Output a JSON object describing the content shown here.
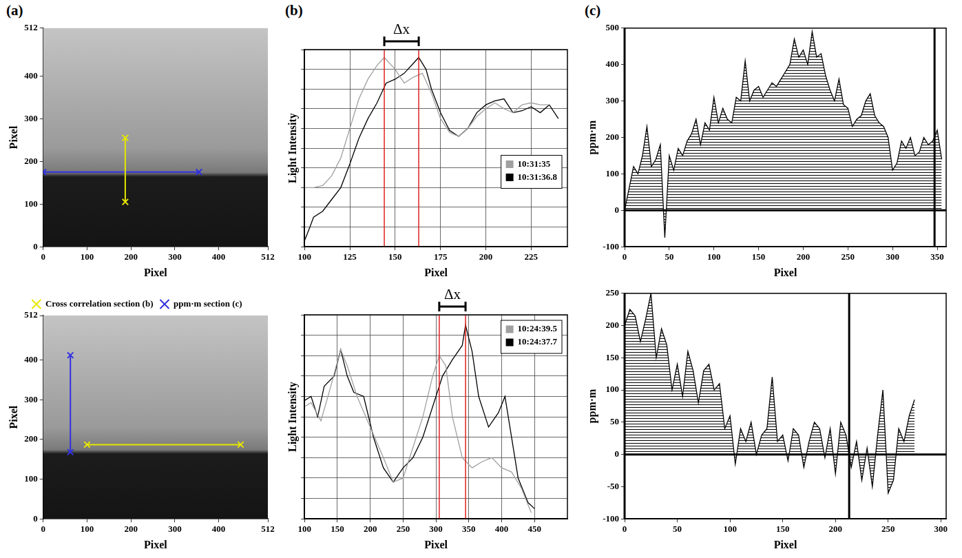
{
  "panel_labels": [
    "(a)",
    "(b)",
    "(c)"
  ],
  "chart_data": [
    {
      "type": "scatter",
      "xlabel": "Pixel",
      "ylabel": "Pixel",
      "xlim": [
        0,
        512
      ],
      "xticks": [
        0,
        100,
        200,
        300,
        400,
        512
      ],
      "ylim": [
        0,
        512
      ],
      "yticks": [
        0,
        100,
        200,
        300,
        400,
        512
      ],
      "grid": false,
      "series": [
        {
          "color": "#e8e800",
          "marker": "x",
          "x": [
            187,
            187
          ],
          "values": [
            105,
            255
          ]
        },
        {
          "color": "#3030e0",
          "marker": "x",
          "x": [
            0,
            355
          ],
          "values": [
            175,
            175
          ]
        }
      ]
    },
    {
      "type": "line",
      "xlabel": "Pixel",
      "ylabel": "Light Intensity",
      "xlim": [
        100,
        245
      ],
      "xticks": [
        100,
        125,
        150,
        175,
        200,
        225
      ],
      "ylim": [
        0,
        10
      ],
      "yticks": [
        0,
        1,
        2,
        3,
        4,
        5,
        6,
        7,
        8,
        9,
        10
      ],
      "grid": true,
      "tick_labels": "x",
      "legend": "center right",
      "annotations": [
        {
          "type": "bracket",
          "text": "Δx",
          "x": [
            144,
            163
          ],
          "color": "#e02020"
        }
      ],
      "series": [
        {
          "name": "10:31:35",
          "color": "#a0a0a0",
          "x": [
            100,
            105,
            110,
            115,
            120,
            125,
            130,
            135,
            140,
            144,
            150,
            155,
            160,
            165,
            170,
            175,
            180,
            185,
            190,
            195,
            200,
            205,
            210,
            215,
            220,
            225,
            230,
            235
          ],
          "values": [
            3.0,
            3.0,
            3.1,
            3.6,
            4.5,
            6.0,
            7.5,
            8.5,
            9.2,
            9.6,
            9.0,
            8.3,
            8.6,
            8.8,
            7.8,
            6.5,
            5.8,
            5.6,
            6.0,
            6.6,
            7.0,
            7.3,
            7.0,
            6.8,
            7.2,
            7.3,
            7.2,
            7.2
          ]
        },
        {
          "name": "10:31:36.8",
          "color": "#000000",
          "x": [
            100,
            103,
            105,
            110,
            115,
            120,
            125,
            130,
            135,
            140,
            145,
            150,
            155,
            160,
            163,
            167,
            170,
            175,
            180,
            185,
            190,
            195,
            200,
            205,
            210,
            215,
            220,
            225,
            230,
            235,
            240
          ],
          "values": [
            0.3,
            1.0,
            1.5,
            1.8,
            2.4,
            3.0,
            4.2,
            5.5,
            6.5,
            7.3,
            8.3,
            8.5,
            8.8,
            9.3,
            9.6,
            9.0,
            8.0,
            6.8,
            5.9,
            5.6,
            6.0,
            6.8,
            7.2,
            7.4,
            7.5,
            6.8,
            6.9,
            7.1,
            6.8,
            7.2,
            6.5
          ]
        }
      ]
    },
    {
      "type": "area",
      "xlabel": "Pixel",
      "ylabel": "ppm·m",
      "xlim": [
        0,
        360
      ],
      "xticks": [
        0,
        50,
        100,
        150,
        200,
        250,
        300,
        350
      ],
      "ylim": [
        -100,
        500
      ],
      "yticks": [
        -100,
        0,
        100,
        200,
        300,
        400,
        500
      ],
      "grid": false,
      "annotations": [
        {
          "type": "vline",
          "x": 0
        },
        {
          "type": "vline",
          "x": 347
        },
        {
          "type": "hline",
          "y": 0
        }
      ],
      "series": [
        {
          "color": "#000000",
          "x": [
            0,
            5,
            10,
            15,
            20,
            25,
            30,
            35,
            40,
            45,
            50,
            55,
            60,
            65,
            70,
            75,
            80,
            85,
            90,
            95,
            100,
            105,
            110,
            115,
            120,
            125,
            130,
            135,
            140,
            145,
            150,
            155,
            160,
            165,
            170,
            175,
            180,
            185,
            190,
            195,
            200,
            205,
            210,
            215,
            220,
            225,
            230,
            235,
            240,
            245,
            250,
            255,
            260,
            265,
            270,
            275,
            280,
            285,
            290,
            295,
            300,
            305,
            310,
            315,
            320,
            325,
            330,
            335,
            340,
            345,
            350,
            355
          ],
          "values": [
            0,
            60,
            120,
            100,
            150,
            230,
            120,
            140,
            180,
            -75,
            150,
            110,
            170,
            150,
            190,
            210,
            250,
            180,
            240,
            220,
            310,
            240,
            280,
            250,
            240,
            310,
            300,
            410,
            300,
            330,
            340,
            310,
            330,
            350,
            340,
            360,
            380,
            400,
            470,
            420,
            440,
            400,
            490,
            420,
            430,
            370,
            330,
            300,
            360,
            290,
            280,
            230,
            250,
            260,
            300,
            320,
            260,
            240,
            230,
            200,
            110,
            130,
            190,
            170,
            200,
            150,
            160,
            200,
            180,
            190,
            220,
            140
          ]
        }
      ]
    },
    {
      "type": "scatter",
      "xlabel": "Pixel",
      "ylabel": "Pixel",
      "xlim": [
        0,
        512
      ],
      "xticks": [
        0,
        100,
        200,
        300,
        400,
        512
      ],
      "ylim": [
        0,
        512
      ],
      "yticks": [
        0,
        100,
        200,
        300,
        400,
        512
      ],
      "grid": false,
      "legend": "top",
      "series": [
        {
          "name": "Cross correlation section (b)",
          "color": "#e8e800",
          "marker": "x",
          "x": [
            100,
            450
          ],
          "values": [
            187,
            187
          ]
        },
        {
          "name": "ppm·m section (c)",
          "color": "#3030e0",
          "marker": "x",
          "x": [
            62,
            62
          ],
          "values": [
            168,
            412
          ]
        }
      ]
    },
    {
      "type": "line",
      "xlabel": "Pixel",
      "ylabel": "Light Intensity",
      "xlim": [
        100,
        500
      ],
      "xticks": [
        100,
        150,
        200,
        250,
        300,
        350,
        400,
        450
      ],
      "ylim": [
        0,
        10
      ],
      "yticks": [
        0,
        1,
        2,
        3,
        4,
        5,
        6,
        7,
        8,
        9,
        10
      ],
      "grid": true,
      "tick_labels": "x",
      "legend": "upper right",
      "annotations": [
        {
          "type": "bracket",
          "text": "Δx",
          "x": [
            305,
            345
          ],
          "color": "#e02020"
        }
      ],
      "series": [
        {
          "name": "10:24:39.5",
          "color": "#a0a0a0",
          "x": [
            100,
            110,
            125,
            140,
            155,
            165,
            180,
            200,
            220,
            235,
            250,
            265,
            280,
            295,
            305,
            315,
            325,
            340,
            355,
            370,
            385,
            400,
            415,
            430,
            445
          ],
          "values": [
            5.5,
            5.7,
            4.8,
            6.5,
            8.3,
            7.5,
            6.0,
            4.5,
            3.0,
            1.8,
            2.0,
            3.5,
            5.0,
            7.0,
            8.0,
            7.5,
            5.0,
            3.0,
            2.5,
            2.8,
            3.0,
            2.5,
            2.3,
            1.5,
            0.3
          ]
        },
        {
          "name": "10:24:37.7",
          "color": "#000000",
          "x": [
            100,
            110,
            120,
            130,
            145,
            155,
            165,
            175,
            190,
            205,
            220,
            235,
            250,
            265,
            280,
            295,
            310,
            325,
            340,
            345,
            355,
            365,
            380,
            395,
            405,
            415,
            425,
            440,
            450
          ],
          "values": [
            5.8,
            6.0,
            5.0,
            6.5,
            7.0,
            8.3,
            7.0,
            6.2,
            6.0,
            4.0,
            2.5,
            1.8,
            2.5,
            3.0,
            4.0,
            5.5,
            7.0,
            7.8,
            8.5,
            9.5,
            8.2,
            6.0,
            4.5,
            5.2,
            6.0,
            4.0,
            2.0,
            0.8,
            0.5
          ]
        }
      ]
    },
    {
      "type": "area",
      "xlabel": "Pixel",
      "ylabel": "ppm·m",
      "xlim": [
        0,
        305
      ],
      "xticks": [
        0,
        50,
        100,
        150,
        200,
        250,
        300
      ],
      "ylim": [
        -100,
        250
      ],
      "yticks": [
        -100,
        -50,
        0,
        50,
        100,
        150,
        200,
        250
      ],
      "grid": false,
      "annotations": [
        {
          "type": "vline",
          "x": 0
        },
        {
          "type": "vline",
          "x": 213
        },
        {
          "type": "hline",
          "y": 0
        }
      ],
      "series": [
        {
          "color": "#000000",
          "x": [
            0,
            5,
            10,
            15,
            20,
            25,
            30,
            35,
            40,
            45,
            50,
            55,
            60,
            65,
            70,
            75,
            80,
            85,
            90,
            95,
            100,
            105,
            110,
            115,
            120,
            125,
            130,
            135,
            140,
            145,
            150,
            155,
            160,
            165,
            170,
            175,
            180,
            185,
            190,
            195,
            200,
            205,
            210,
            215,
            220,
            225,
            230,
            235,
            240,
            245,
            250,
            255,
            260,
            265,
            270,
            275
          ],
          "values": [
            200,
            225,
            215,
            175,
            210,
            250,
            150,
            195,
            170,
            100,
            140,
            90,
            160,
            130,
            80,
            130,
            140,
            100,
            110,
            40,
            60,
            -15,
            40,
            20,
            50,
            0,
            30,
            40,
            120,
            20,
            30,
            -10,
            40,
            30,
            -20,
            20,
            50,
            40,
            -5,
            40,
            -30,
            50,
            30,
            -20,
            20,
            -40,
            10,
            -50,
            30,
            100,
            -60,
            -40,
            40,
            20,
            60,
            85
          ]
        }
      ]
    }
  ]
}
